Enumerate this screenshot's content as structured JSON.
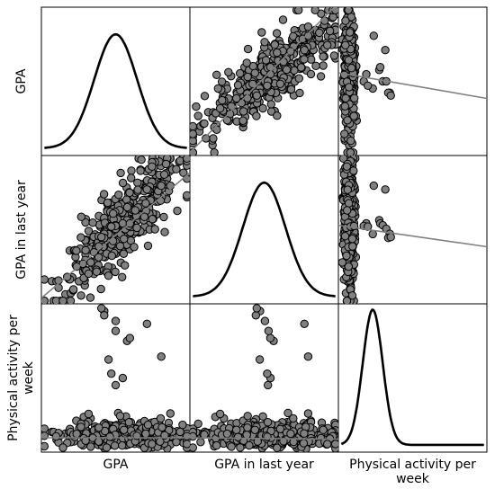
{
  "chart_data": {
    "type": "scatter",
    "title": "",
    "variables": [
      "GPA",
      "GPA in last year",
      "Physical activity per week"
    ],
    "row_labels": [
      [
        "GPA"
      ],
      [
        "GPA in last year"
      ],
      [
        "Physical activity per",
        "week"
      ]
    ],
    "col_labels": [
      [
        "GPA"
      ],
      [
        "GPA in last year"
      ],
      [
        "Physical activity per",
        "week"
      ]
    ],
    "grid": false,
    "legend": "none",
    "point_color": "#808080",
    "point_stroke": "#000000",
    "line_color": "#808080",
    "diagonal": "density",
    "ranges": [
      [
        0,
        1
      ],
      [
        0,
        1
      ],
      [
        0,
        1
      ]
    ],
    "regressions": [
      {
        "row": 0,
        "col": 1,
        "y_at_xmin": 0.0,
        "y_at_xmax": 1.05
      },
      {
        "row": 0,
        "col": 2,
        "y_at_xmin": 0.56,
        "y_at_xmax": 0.38
      },
      {
        "row": 1,
        "col": 0,
        "y_at_xmin": 0.02,
        "y_at_xmax": 0.9
      },
      {
        "row": 1,
        "col": 2,
        "y_at_xmin": 0.53,
        "y_at_xmax": 0.38
      },
      {
        "row": 2,
        "col": 0,
        "y_at_xmin": 0.08,
        "y_at_xmax": 0.08
      },
      {
        "row": 2,
        "col": 1,
        "y_at_xmin": 0.08,
        "y_at_xmax": 0.07
      }
    ],
    "densities": [
      {
        "mean": 0.5,
        "sd": 0.15,
        "peak": 0.8
      },
      {
        "mean": 0.5,
        "sd": 0.15,
        "peak": 0.8
      },
      {
        "mean": 0.22,
        "sd": 0.07,
        "peak": 0.95
      }
    ],
    "outliers": {
      "activity_points": [
        [
          0.65,
          0.82
        ],
        [
          0.76,
          0.58
        ],
        [
          0.88,
          0.72
        ],
        [
          0.5,
          0.55
        ],
        [
          0.63,
          0.45
        ],
        [
          0.78,
          0.6
        ],
        [
          0.83,
          0.5
        ],
        [
          0.9,
          0.5
        ],
        [
          0.97,
          0.42
        ],
        [
          0.45,
          0.5
        ],
        [
          0.94,
          0.42
        ],
        [
          0.99,
          0.4
        ],
        [
          0.53,
          0.47
        ]
      ]
    }
  }
}
